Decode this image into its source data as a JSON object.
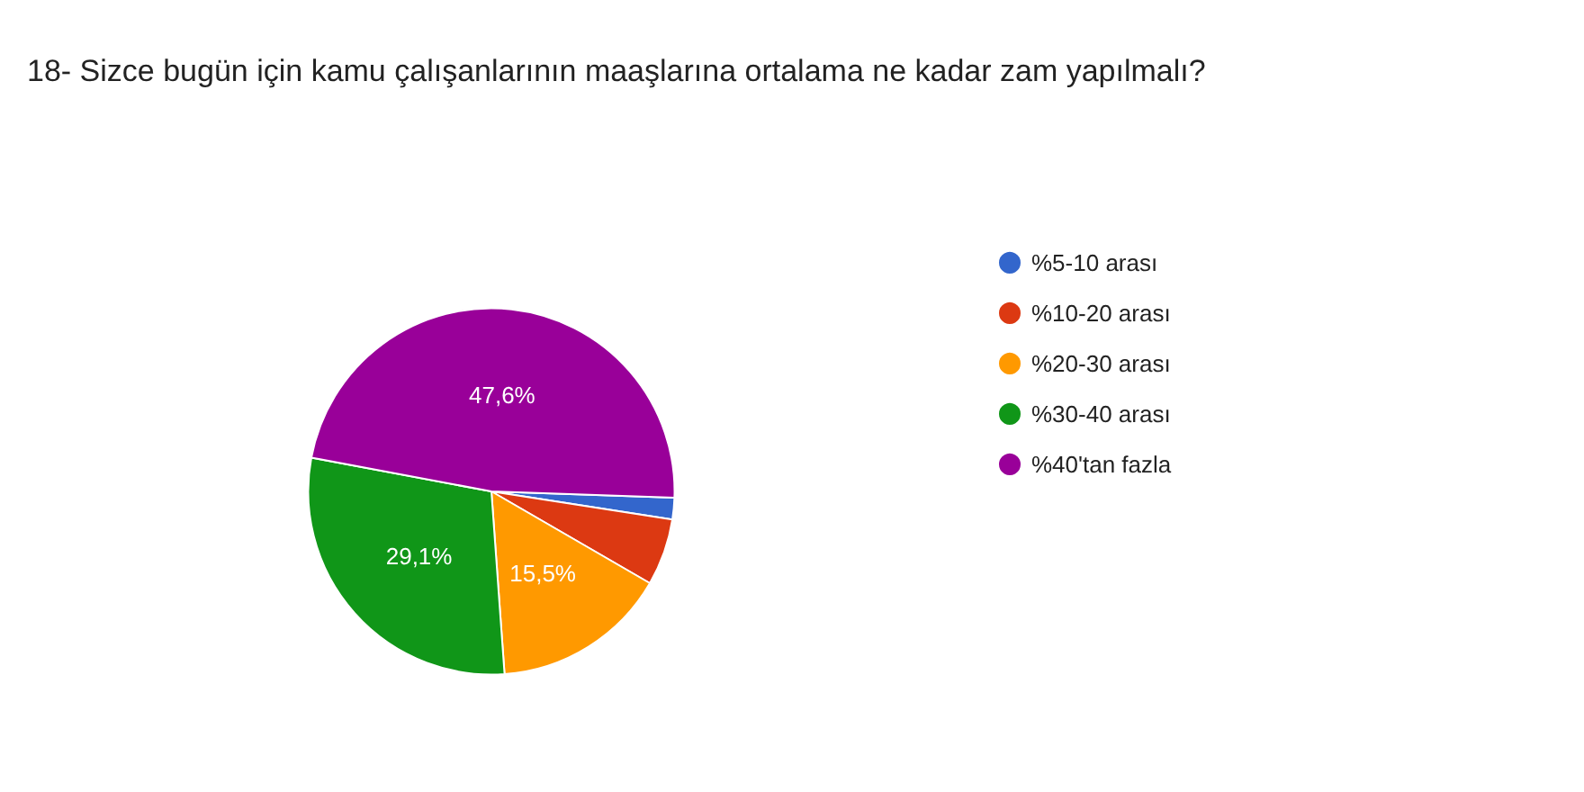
{
  "chart_data": {
    "type": "pie",
    "title": "18- Sizce bugün için kamu çalışanlarının maaşlarına ortalama ne kadar zam yapılmalı?",
    "categories": [
      "%5-10 arası",
      "%10-20 arası",
      "%20-30 arası",
      "%30-40 arası",
      "%40'tan fazla"
    ],
    "values": [
      1.9,
      5.9,
      15.5,
      29.1,
      47.6
    ],
    "colors": [
      "#3366cc",
      "#dc3912",
      "#ff9900",
      "#109618",
      "#990099"
    ],
    "value_labels": [
      null,
      null,
      "15,5%",
      "29,1%",
      "47,6%"
    ],
    "legend": "right"
  }
}
